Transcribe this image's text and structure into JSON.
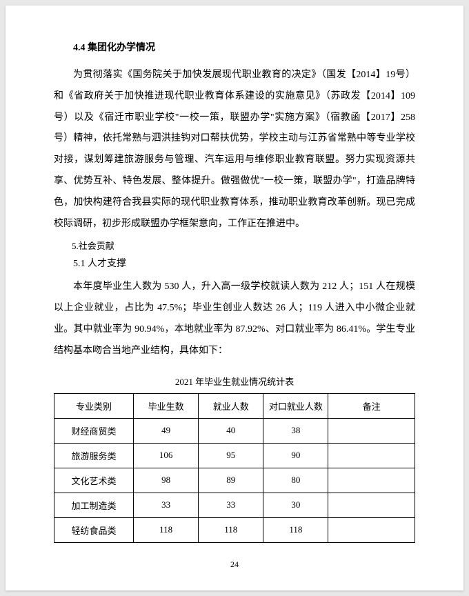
{
  "heading_4_4": "4.4 集团化办学情况",
  "paragraph_1": "为贯彻落实《国务院关于加快发展现代职业教育的决定》（国发【2014】19号）和《省政府关于加快推进现代职业教育体系建设的实施意见》（苏政发【2014】109 号）以及《宿迁市职业学校\"一校一策，联盟办学\"实施方案》（宿教函【2017】258 号）精神，依托常熟与泗洪挂钩对口帮扶优势，学校主动与江苏省常熟中等专业学校对接，谋划筹建旅游服务与管理、汽车运用与维修职业教育联盟。努力实现资源共享、优势互补、特色发展、整体提升。做强做优\"一校一策，联盟办学\"，打造品牌特色，加快构建符合我县实际的现代职业教育体系，推动职业教育改革创新。现已完成校际调研，初步形成联盟办学框架意向，工作正在推进中。",
  "heading_5": "5.社会贡献",
  "heading_5_1": "5.1 人才支撑",
  "paragraph_2": "本年度毕业生人数为 530 人，升入高一级学校就读人数为 212 人；151 人在规模以上企业就业，占比为 47.5%；毕业生创业人数达 26 人；119 人进入中小微企业就业。其中就业率为 90.94%，本地就业率为 87.92%、对口就业率为 86.41%。学生专业结构基本吻合当地产业结构，具体如下：",
  "table_title": "2021 年毕业生就业情况统计表",
  "table": {
    "columns": [
      "专业类别",
      "毕业生数",
      "就业人数",
      "对口就业人数",
      "备注"
    ],
    "rows": [
      [
        "财经商贸类",
        "49",
        "40",
        "38",
        ""
      ],
      [
        "旅游服务类",
        "106",
        "95",
        "90",
        ""
      ],
      [
        "文化艺术类",
        "98",
        "89",
        "80",
        ""
      ],
      [
        "加工制造类",
        "33",
        "33",
        "30",
        ""
      ],
      [
        "轻纺食品类",
        "118",
        "118",
        "118",
        ""
      ]
    ]
  },
  "page_number": "24",
  "colors": {
    "page_bg": "#ffffff",
    "body_bg": "#e8e8e8",
    "text": "#000000",
    "border": "#000000"
  }
}
